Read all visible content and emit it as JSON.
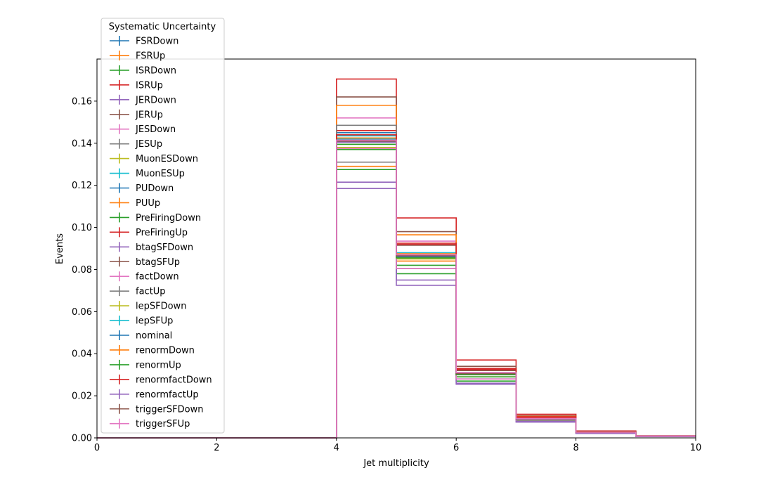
{
  "chart_data": {
    "type": "line",
    "drawstyle": "histogram-step",
    "xlabel": "Jet multiplicity",
    "ylabel": "Events",
    "xlim": [
      0,
      10
    ],
    "ylim": [
      0,
      0.18
    ],
    "xticks": [
      0,
      2,
      4,
      6,
      8,
      10
    ],
    "yticks": [
      0.0,
      0.02,
      0.04,
      0.06,
      0.08,
      0.1,
      0.12,
      0.14,
      0.16
    ],
    "bin_edges": [
      0,
      1,
      2,
      3,
      4,
      5,
      6,
      7,
      8,
      9,
      10
    ],
    "grid": false,
    "legend": {
      "title": "Systematic Uncertainty",
      "placement": "top-left, above axes"
    },
    "series": [
      {
        "name": "FSRDown",
        "color": "#1f77b4",
        "values": [
          0,
          0,
          0,
          0,
          0.141,
          0.086,
          0.03,
          0.009,
          0.0025,
          0.0008
        ]
      },
      {
        "name": "FSRUp",
        "color": "#ff7f0e",
        "values": [
          0,
          0,
          0,
          0,
          0.129,
          0.084,
          0.029,
          0.0085,
          0.0025,
          0.0008
        ]
      },
      {
        "name": "ISRDown",
        "color": "#2ca02c",
        "values": [
          0,
          0,
          0,
          0,
          0.1275,
          0.078,
          0.027,
          0.0082,
          0.0023,
          0.0007
        ]
      },
      {
        "name": "ISRUp",
        "color": "#d62728",
        "values": [
          0,
          0,
          0,
          0,
          0.1705,
          0.1045,
          0.037,
          0.0112,
          0.0033,
          0.001
        ]
      },
      {
        "name": "JERDown",
        "color": "#9467bd",
        "values": [
          0,
          0,
          0,
          0,
          0.1215,
          0.075,
          0.026,
          0.0078,
          0.0022,
          0.0007
        ]
      },
      {
        "name": "JERUp",
        "color": "#8c564b",
        "values": [
          0,
          0,
          0,
          0,
          0.162,
          0.098,
          0.034,
          0.0105,
          0.0031,
          0.0009
        ]
      },
      {
        "name": "JESDown",
        "color": "#e377c2",
        "values": [
          0,
          0,
          0,
          0,
          0.152,
          0.0935,
          0.032,
          0.0098,
          0.0029,
          0.0009
        ]
      },
      {
        "name": "JESUp",
        "color": "#7f7f7f",
        "values": [
          0,
          0,
          0,
          0,
          0.131,
          0.0805,
          0.028,
          0.0086,
          0.0025,
          0.0008
        ]
      },
      {
        "name": "MuonESDown",
        "color": "#bcbd22",
        "values": [
          0,
          0,
          0,
          0,
          0.138,
          0.085,
          0.03,
          0.009,
          0.0026,
          0.0008
        ]
      },
      {
        "name": "MuonESUp",
        "color": "#17becf",
        "values": [
          0,
          0,
          0,
          0,
          0.1435,
          0.088,
          0.031,
          0.0093,
          0.0027,
          0.0008
        ]
      },
      {
        "name": "PUDown",
        "color": "#1f77b4",
        "values": [
          0,
          0,
          0,
          0,
          0.145,
          0.087,
          0.031,
          0.0092,
          0.0027,
          0.0008
        ]
      },
      {
        "name": "PUUp",
        "color": "#ff7f0e",
        "values": [
          0,
          0,
          0,
          0,
          0.158,
          0.0965,
          0.033,
          0.0102,
          0.003,
          0.0009
        ]
      },
      {
        "name": "PreFiringDown",
        "color": "#2ca02c",
        "values": [
          0,
          0,
          0,
          0,
          0.137,
          0.082,
          0.029,
          0.0088,
          0.0025,
          0.0008
        ]
      },
      {
        "name": "PreFiringUp",
        "color": "#d62728",
        "values": [
          0,
          0,
          0,
          0,
          0.146,
          0.0925,
          0.033,
          0.01,
          0.0029,
          0.0009
        ]
      },
      {
        "name": "btagSFDown",
        "color": "#9467bd",
        "values": [
          0,
          0,
          0,
          0,
          0.1185,
          0.0725,
          0.0255,
          0.0075,
          0.0021,
          0.0006
        ]
      },
      {
        "name": "btagSFUp",
        "color": "#8c564b",
        "values": [
          0,
          0,
          0,
          0,
          0.1405,
          0.0915,
          0.032,
          0.0095,
          0.0028,
          0.0008
        ]
      },
      {
        "name": "factDown",
        "color": "#e377c2",
        "values": [
          0,
          0,
          0,
          0,
          0.1375,
          0.0805,
          0.028,
          0.0085,
          0.0025,
          0.0008
        ]
      },
      {
        "name": "factUp",
        "color": "#7f7f7f",
        "values": [
          0,
          0,
          0,
          0,
          0.1485,
          0.0865,
          0.031,
          0.0091,
          0.0026,
          0.0008
        ]
      },
      {
        "name": "lepSFDown",
        "color": "#bcbd22",
        "values": [
          0,
          0,
          0,
          0,
          0.1395,
          0.0855,
          0.03,
          0.0089,
          0.0026,
          0.0008
        ]
      },
      {
        "name": "lepSFUp",
        "color": "#17becf",
        "values": [
          0,
          0,
          0,
          0,
          0.142,
          0.087,
          0.031,
          0.0092,
          0.0027,
          0.0008
        ]
      },
      {
        "name": "nominal",
        "color": "#1f77b4",
        "values": [
          0,
          0,
          0,
          0,
          0.1415,
          0.0865,
          0.0305,
          0.0091,
          0.0026,
          0.0008
        ]
      },
      {
        "name": "renormDown",
        "color": "#ff7f0e",
        "values": [
          0,
          0,
          0,
          0,
          0.1425,
          0.0875,
          0.031,
          0.0093,
          0.0027,
          0.0008
        ]
      },
      {
        "name": "renormUp",
        "color": "#2ca02c",
        "values": [
          0,
          0,
          0,
          0,
          0.1395,
          0.0855,
          0.03,
          0.0089,
          0.0026,
          0.0008
        ]
      },
      {
        "name": "renormfactDown",
        "color": "#d62728",
        "values": [
          0,
          0,
          0,
          0,
          0.144,
          0.092,
          0.0325,
          0.0098,
          0.0028,
          0.0009
        ]
      },
      {
        "name": "renormfactUp",
        "color": "#9467bd",
        "values": [
          0,
          0,
          0,
          0,
          0.1405,
          0.0865,
          0.0305,
          0.009,
          0.0026,
          0.0008
        ]
      },
      {
        "name": "triggerSFDown",
        "color": "#8c564b",
        "values": [
          0,
          0,
          0,
          0,
          0.141,
          0.0865,
          0.0305,
          0.0091,
          0.0026,
          0.0008
        ]
      },
      {
        "name": "triggerSFUp",
        "color": "#e377c2",
        "values": [
          0,
          0,
          0,
          0,
          0.1415,
          0.087,
          0.031,
          0.0092,
          0.0027,
          0.0008
        ]
      }
    ]
  }
}
